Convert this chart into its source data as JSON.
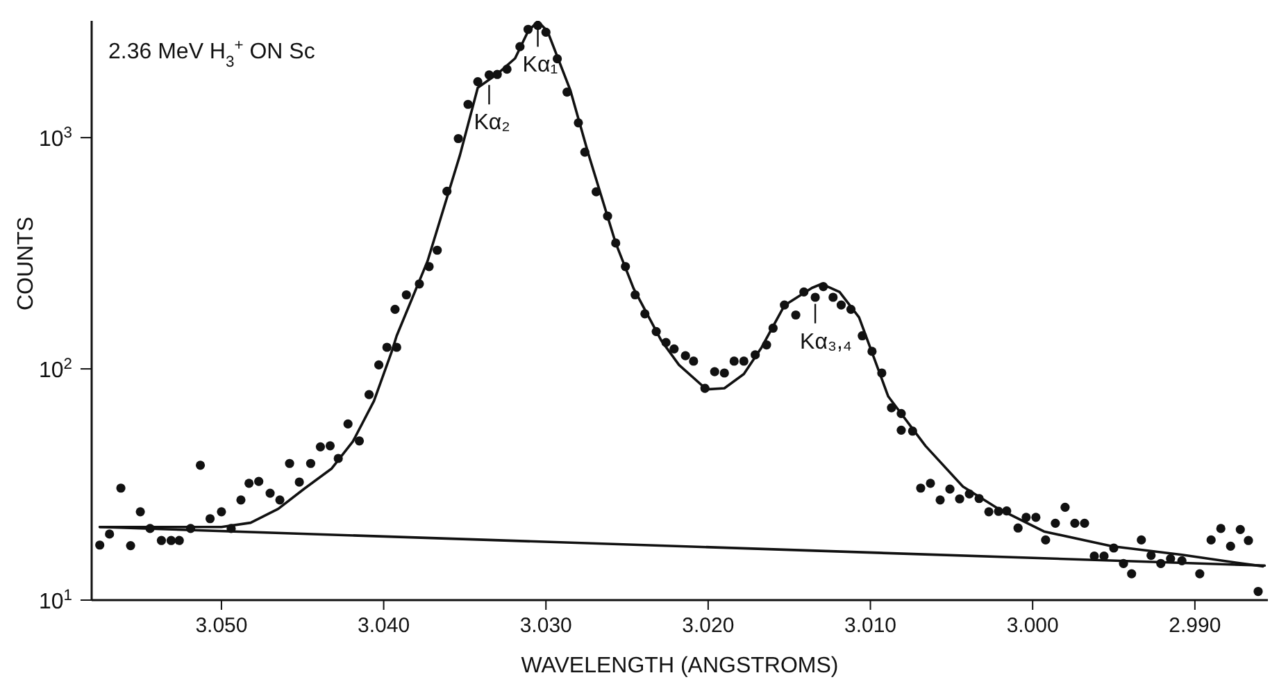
{
  "chart_data": {
    "type": "scatter",
    "title": "2.36 MeV H$_{3}$$^{+}$ ON Sc",
    "xlabel": "WAVELENGTH (ANGSTROMS)",
    "ylabel": "COUNTS",
    "log": true,
    "xlim": [
      3.058,
      2.9855
    ],
    "ylim": [
      10,
      3200
    ],
    "xticks": [
      {
        "value": 3.05,
        "label": "3.050"
      },
      {
        "value": 3.04,
        "label": "3.040"
      },
      {
        "value": 3.03,
        "label": "3.030"
      },
      {
        "value": 3.02,
        "label": "3.020"
      },
      {
        "value": 3.01,
        "label": "3.010"
      },
      {
        "value": 3.0,
        "label": "3.000"
      },
      {
        "value": 2.99,
        "label": "2.990"
      }
    ],
    "yticks": [
      {
        "value": 10,
        "label": "10$^{1}$"
      },
      {
        "value": 100,
        "label": "10$^{2}$"
      },
      {
        "value": 1000,
        "label": "10$^{3}$"
      }
    ],
    "annotations": [
      {
        "text": "Kα₁",
        "x": 3.0305,
        "y": 3000
      },
      {
        "text": "Kα₂",
        "x": 3.0335,
        "y": 1690
      },
      {
        "text": "Kα₃,₄",
        "x": 3.0134,
        "y": 191
      }
    ],
    "series": [
      {
        "marker": "circle",
        "color": "#111111",
        "x": [
          3.0575,
          3.0569,
          3.0562,
          3.0556,
          3.055,
          3.0544,
          3.0537,
          3.0531,
          3.0526,
          3.0519,
          3.0513,
          3.0507,
          3.05,
          3.0494,
          3.0488,
          3.0483,
          3.0477,
          3.047,
          3.0464,
          3.0458,
          3.0452,
          3.0445,
          3.0439,
          3.0433,
          3.0428,
          3.0422,
          3.0415,
          3.0409,
          3.0403,
          3.0398,
          3.0392,
          3.0393,
          3.0386,
          3.0378,
          3.0372,
          3.0367,
          3.0361,
          3.0354,
          3.0348,
          3.0342,
          3.0335,
          3.033,
          3.0324,
          3.0316,
          3.0311,
          3.0305,
          3.03,
          3.0293,
          3.0287,
          3.028,
          3.0276,
          3.0269,
          3.0262,
          3.0257,
          3.0251,
          3.0245,
          3.0239,
          3.0232,
          3.0226,
          3.0221,
          3.0214,
          3.0209,
          3.0202,
          3.0196,
          3.019,
          3.0184,
          3.0178,
          3.0171,
          3.0164,
          3.016,
          3.0153,
          3.0146,
          3.0141,
          3.0134,
          3.0129,
          3.0123,
          3.0118,
          3.0112,
          3.0105,
          3.0099,
          3.0093,
          3.0087,
          3.0081,
          3.0081,
          3.0074,
          3.0069,
          3.0063,
          3.0057,
          3.0051,
          3.0045,
          3.0039,
          3.0033,
          3.0027,
          3.0021,
          3.0016,
          3.0009,
          3.0004,
          2.9998,
          2.9992,
          2.9986,
          2.998,
          2.9974,
          2.9968,
          2.9962,
          2.9956,
          2.995,
          2.9944,
          2.9939,
          2.9933,
          2.9927,
          2.9921,
          2.9915,
          2.9908,
          2.9897,
          2.989,
          2.9884,
          2.9878,
          2.9872,
          2.9867,
          2.9861
        ],
        "values": [
          17.3,
          19.3,
          30.5,
          17.2,
          24.1,
          20.4,
          18.1,
          18.1,
          18.1,
          20.4,
          38.3,
          22.5,
          24.1,
          20.4,
          27.1,
          32,
          32.6,
          29,
          27.1,
          39,
          32.4,
          39,
          46,
          46.5,
          41,
          57.8,
          48.8,
          77.4,
          104,
          124,
          124,
          181,
          209,
          233,
          277,
          326,
          586,
          991,
          1393,
          1746,
          1868,
          1876,
          1977,
          2475,
          2940,
          3057,
          2856,
          2193,
          1574,
          1159,
          865,
          583,
          458,
          350,
          277,
          209,
          173,
          145,
          130,
          122,
          114,
          108,
          82.4,
          97.3,
          96,
          108,
          108,
          115,
          127,
          150,
          189,
          171,
          215,
          204,
          227,
          204,
          189,
          181,
          139,
          119,
          96,
          67.9,
          64.1,
          54.3,
          53.8,
          30.5,
          32,
          27.1,
          30.2,
          27.4,
          28.8,
          27.5,
          24.1,
          24.2,
          24.3,
          20.5,
          22.8,
          22.8,
          18.2,
          21.5,
          25.2,
          21.5,
          21.5,
          15.5,
          15.5,
          16.8,
          14.4,
          13,
          18.2,
          15.6,
          14.4,
          15.1,
          14.8,
          13,
          18.2,
          20.4,
          17.1,
          20.2,
          18.1,
          10.9
        ]
      },
      {
        "type": "line",
        "marker": "none",
        "color": "#111111",
        "x": [
          3.0575,
          3.05,
          3.0482,
          3.0465,
          3.0449,
          3.0432,
          3.0419,
          3.0406,
          3.0395,
          3.0392,
          3.0373,
          3.0353,
          3.0342,
          3.033,
          3.0319,
          3.0311,
          3.0305,
          3.0299,
          3.0285,
          3.0274,
          3.0257,
          3.0246,
          3.0229,
          3.0218,
          3.0201,
          3.019,
          3.0178,
          3.0167,
          3.0153,
          3.0136,
          3.013,
          3.0119,
          3.0107,
          3.0089,
          3.0066,
          3.0043,
          3.0021,
          2.9993,
          2.9951,
          2.9908,
          2.988,
          2.9858
        ],
        "values": [
          20.7,
          20.7,
          21.6,
          24.8,
          30.3,
          37.1,
          48.5,
          72.6,
          119,
          139,
          292,
          840,
          1645,
          1884,
          2203,
          2884,
          3185,
          2884,
          1607,
          859,
          350,
          223,
          133,
          104,
          81.5,
          82.4,
          95,
          124,
          188,
          224,
          233,
          215,
          167,
          76,
          46.4,
          31,
          24.8,
          19.8,
          17.1,
          15.7,
          14.7,
          14
        ]
      },
      {
        "type": "line",
        "marker": "none",
        "color": "#111111",
        "x": [
          3.0575,
          2.9857
        ],
        "values": [
          20.7,
          14.1
        ]
      }
    ]
  }
}
